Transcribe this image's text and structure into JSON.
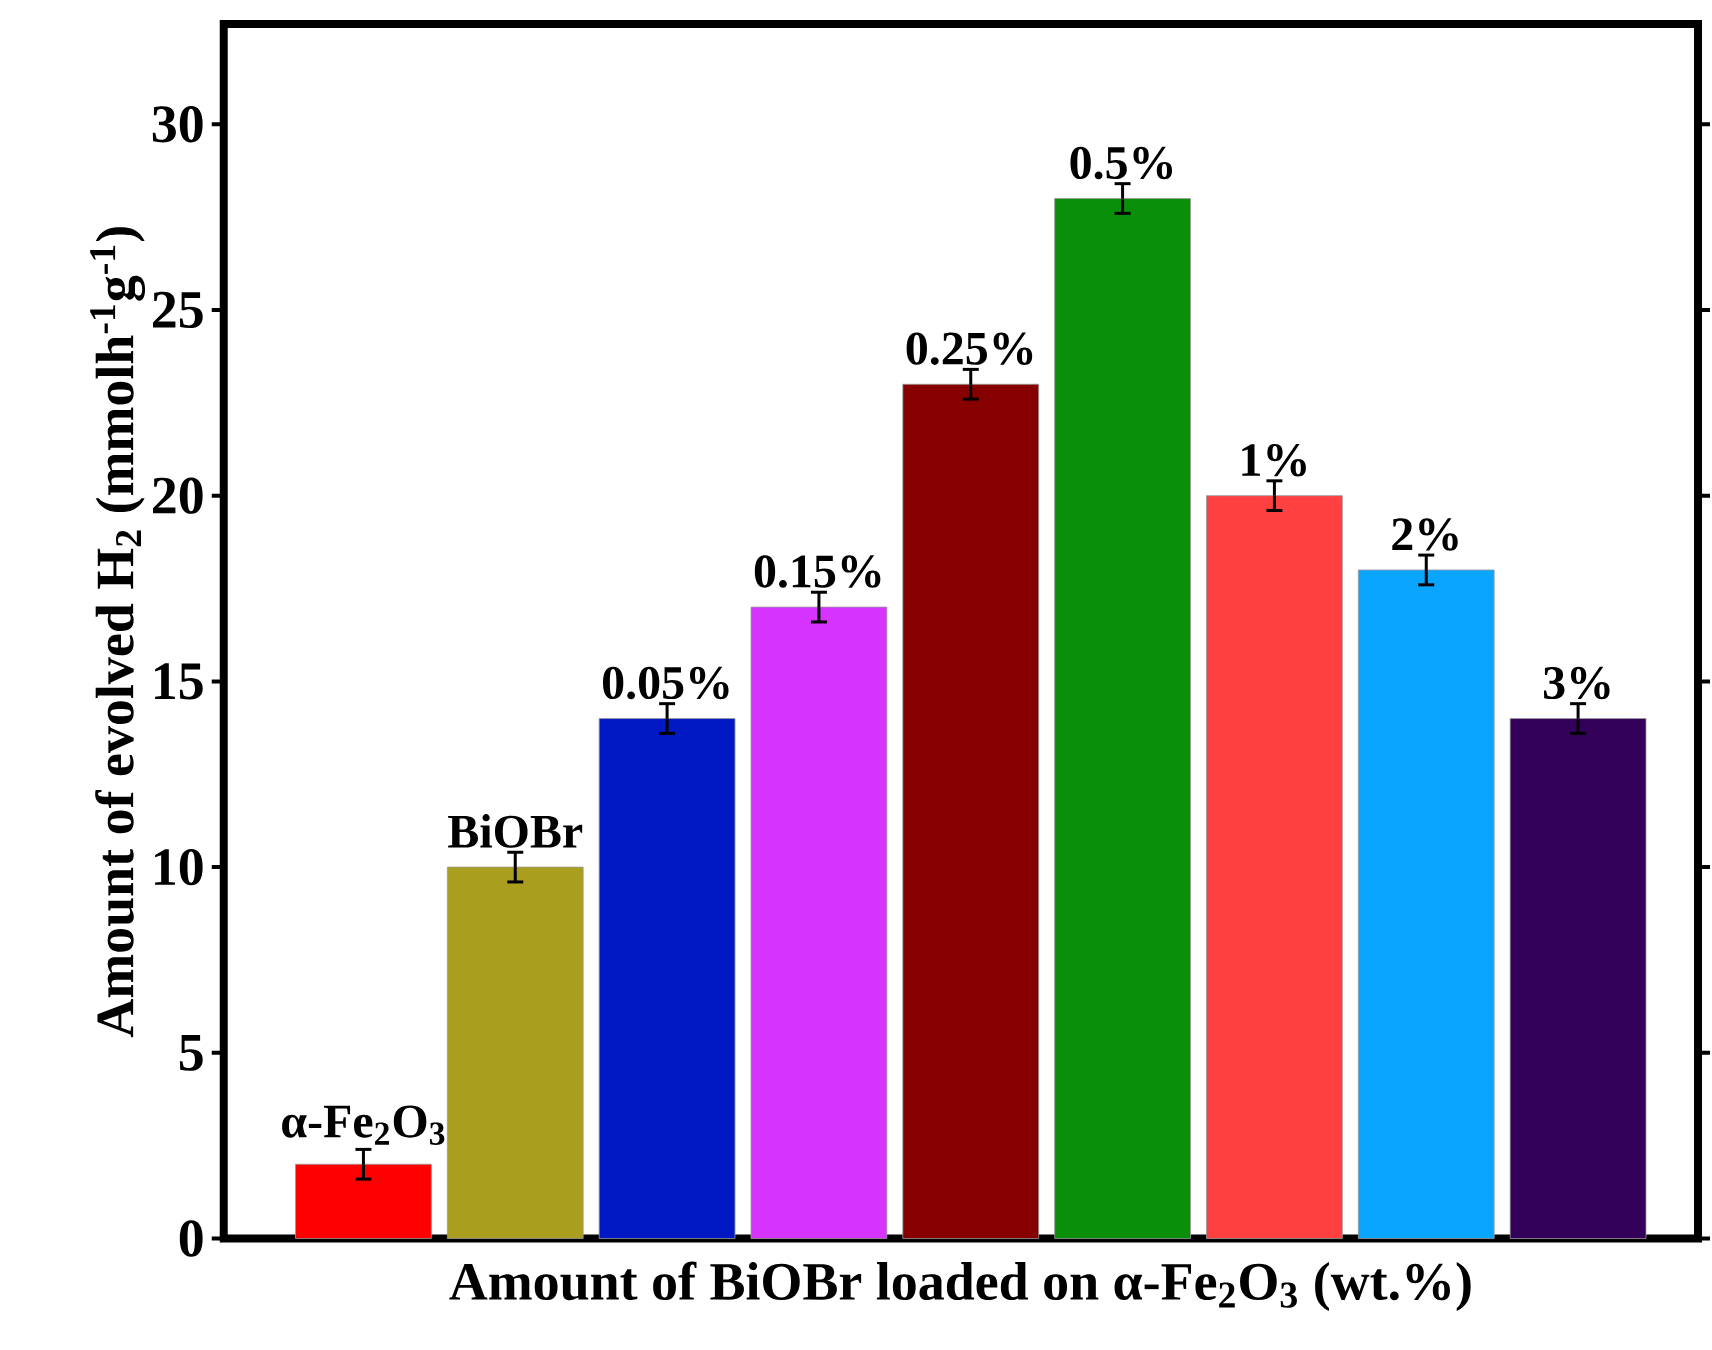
{
  "chart_data": {
    "type": "bar",
    "xlabel": "Amount of BiOBr loaded on α-Fe$_{2}$O$_{3}$ (wt.%)",
    "ylabel": "Amount of evolved H$_{2}$ (mmolh$^{-1}$g$^{-1}$)",
    "categories": [
      "α-Fe$_{2}$O$_{3}$",
      "BiOBr",
      "0.05%",
      "0.15%",
      "0.25%",
      "0.5%",
      "1%",
      "2%",
      "3%"
    ],
    "values": [
      2,
      10,
      14,
      17,
      23,
      28,
      20,
      18,
      14
    ],
    "errors": [
      0.4,
      0.4,
      0.4,
      0.4,
      0.4,
      0.4,
      0.4,
      0.4,
      0.4
    ],
    "colors": [
      "#ff0000",
      "#a99e1d",
      "#0019c4",
      "#d633ff",
      "#860000",
      "#0a8f0a",
      "#ff4040",
      "#0aa5ff",
      "#33005a"
    ],
    "ylim": [
      0,
      32.7
    ],
    "yticks": [
      0,
      5,
      10,
      15,
      20,
      25,
      30
    ],
    "grid": false
  }
}
